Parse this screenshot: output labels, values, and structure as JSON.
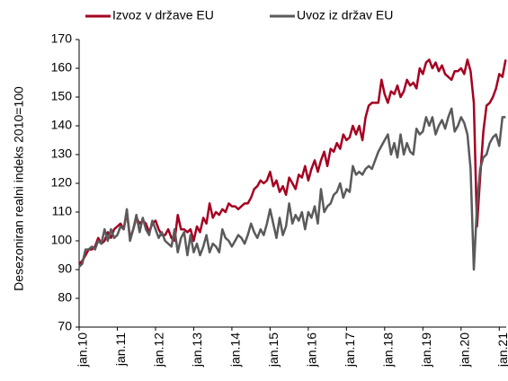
{
  "chart_data": {
    "type": "line",
    "ylabel": "Desezoniran realni indeks 2010=100",
    "categories": [
      "jan.10",
      null,
      null,
      null,
      null,
      null,
      null,
      null,
      null,
      null,
      null,
      null,
      "jan.11",
      null,
      null,
      null,
      null,
      null,
      null,
      null,
      null,
      null,
      null,
      null,
      "jan.12",
      null,
      null,
      null,
      null,
      null,
      null,
      null,
      null,
      null,
      null,
      null,
      "jan.13",
      null,
      null,
      null,
      null,
      null,
      null,
      null,
      null,
      null,
      null,
      null,
      "jan.14",
      null,
      null,
      null,
      null,
      null,
      null,
      null,
      null,
      null,
      null,
      null,
      "jan.15",
      null,
      null,
      null,
      null,
      null,
      null,
      null,
      null,
      null,
      null,
      null,
      "jan.16",
      null,
      null,
      null,
      null,
      null,
      null,
      null,
      null,
      null,
      null,
      null,
      "jan.17",
      null,
      null,
      null,
      null,
      null,
      null,
      null,
      null,
      null,
      null,
      null,
      "jan.18",
      null,
      null,
      null,
      null,
      null,
      null,
      null,
      null,
      null,
      null,
      null,
      "jan.19",
      null,
      null,
      null,
      null,
      null,
      null,
      null,
      null,
      null,
      null,
      null,
      "jan.20",
      null,
      null,
      null,
      null,
      null,
      null,
      null,
      null,
      null,
      null,
      null,
      "jan.21",
      null,
      null
    ],
    "series": [
      {
        "name": "Izvoz v države EU",
        "color": "#a50021",
        "values": [
          92,
          93,
          95,
          97,
          97,
          98,
          101,
          99,
          100,
          103,
          101,
          104,
          105,
          106,
          104,
          110,
          101,
          104,
          108,
          106,
          107,
          106,
          103,
          106,
          107,
          104,
          102,
          102,
          104,
          101,
          100,
          109,
          104,
          104,
          103,
          104,
          100,
          105,
          103,
          108,
          106,
          113,
          108,
          110,
          109,
          111,
          110,
          113,
          112,
          112,
          111,
          112,
          113,
          113,
          115,
          118,
          119,
          121,
          120,
          121,
          124,
          119,
          121,
          117,
          119,
          116,
          122,
          120,
          118,
          123,
          122,
          126,
          121,
          125,
          128,
          124,
          128,
          131,
          126,
          132,
          131,
          134,
          132,
          137,
          135,
          136,
          140,
          137,
          140,
          135,
          143,
          147,
          148,
          148,
          148,
          156,
          151,
          148,
          152,
          151,
          154,
          150,
          152,
          156,
          154,
          155,
          153,
          160,
          158,
          162,
          163,
          160,
          162,
          159,
          161,
          158,
          157,
          156,
          159,
          159,
          160,
          158,
          163,
          159,
          148,
          105,
          122,
          138,
          147,
          148,
          150,
          153,
          158,
          157,
          163
        ]
      },
      {
        "name": "Uvoz iz držav EU",
        "color": "#5a5a5a",
        "values": [
          91,
          92,
          97,
          97,
          98,
          97,
          100,
          99,
          104,
          100,
          104,
          101,
          102,
          105,
          104,
          111,
          100,
          104,
          109,
          103,
          108,
          104,
          102,
          107,
          104,
          101,
          103,
          100,
          99,
          98,
          104,
          96,
          101,
          103,
          95,
          102,
          96,
          99,
          95,
          98,
          102,
          96,
          99,
          98,
          96,
          104,
          101,
          100,
          98,
          100,
          102,
          101,
          99,
          102,
          106,
          103,
          101,
          104,
          102,
          106,
          111,
          106,
          101,
          108,
          102,
          105,
          113,
          106,
          109,
          107,
          110,
          104,
          110,
          108,
          112,
          106,
          118,
          110,
          112,
          113,
          116,
          117,
          120,
          115,
          118,
          117,
          126,
          123,
          124,
          123,
          125,
          126,
          125,
          128,
          131,
          133,
          135,
          137,
          130,
          134,
          129,
          137,
          130,
          134,
          131,
          130,
          139,
          137,
          138,
          143,
          140,
          143,
          137,
          140,
          142,
          139,
          143,
          146,
          138,
          140,
          143,
          141,
          137,
          125,
          90,
          112,
          125,
          129,
          130,
          134,
          136,
          137,
          133,
          143,
          143
        ]
      }
    ],
    "ylim": [
      70,
      170
    ],
    "yticks": [
      70,
      80,
      90,
      100,
      110,
      120,
      130,
      140,
      150,
      160,
      170
    ]
  }
}
